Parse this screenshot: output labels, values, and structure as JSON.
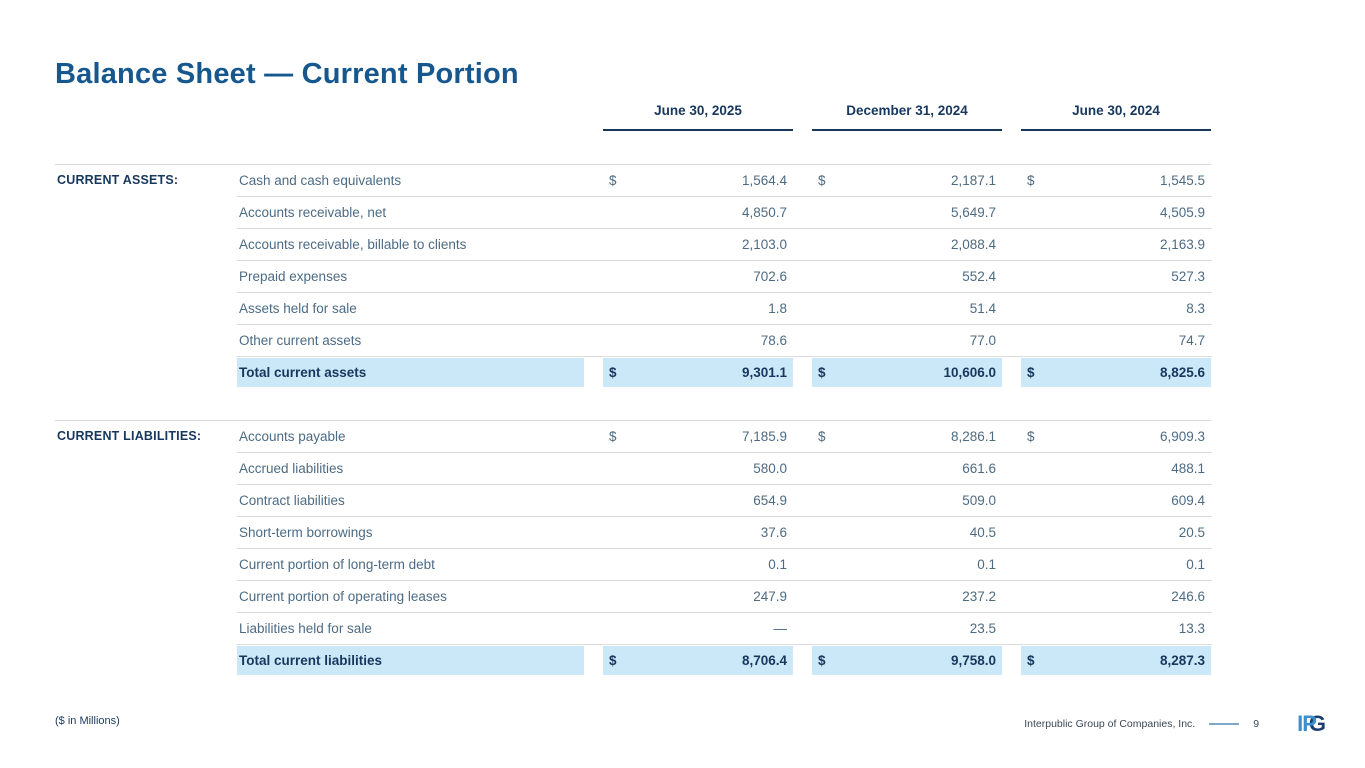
{
  "slide": {
    "title": "Balance Sheet — Current Portion",
    "footnote": "($ in Millions)",
    "footer": {
      "company": "Interpublic Group of Companies, Inc.",
      "page_number": "9",
      "logo_ip": "IP",
      "logo_g": "G"
    }
  },
  "table": {
    "columns": [
      "June 30, 2025",
      "December 31, 2024",
      "June 30, 2024"
    ],
    "sections": [
      {
        "category": "CURRENT ASSETS:",
        "rows": [
          {
            "label": "Cash and cash equivalents",
            "dollar": true,
            "values": [
              "1,564.4",
              "2,187.1",
              "1,545.5"
            ]
          },
          {
            "label": "Accounts receivable, net",
            "dollar": false,
            "values": [
              "4,850.7",
              "5,649.7",
              "4,505.9"
            ]
          },
          {
            "label": "Accounts receivable, billable to clients",
            "dollar": false,
            "values": [
              "2,103.0",
              "2,088.4",
              "2,163.9"
            ]
          },
          {
            "label": "Prepaid expenses",
            "dollar": false,
            "values": [
              "702.6",
              "552.4",
              "527.3"
            ]
          },
          {
            "label": "Assets held for sale",
            "dollar": false,
            "values": [
              "1.8",
              "51.4",
              "8.3"
            ]
          },
          {
            "label": "Other current assets",
            "dollar": false,
            "values": [
              "78.6",
              "77.0",
              "74.7"
            ]
          }
        ],
        "total": {
          "label": "Total current assets",
          "dollar": true,
          "values": [
            "9,301.1",
            "10,606.0",
            "8,825.6"
          ]
        }
      },
      {
        "category": "CURRENT LIABILITIES:",
        "rows": [
          {
            "label": "Accounts payable",
            "dollar": true,
            "values": [
              "7,185.9",
              "8,286.1",
              "6,909.3"
            ]
          },
          {
            "label": "Accrued liabilities",
            "dollar": false,
            "values": [
              "580.0",
              "661.6",
              "488.1"
            ]
          },
          {
            "label": "Contract liabilities",
            "dollar": false,
            "values": [
              "654.9",
              "509.0",
              "609.4"
            ]
          },
          {
            "label": "Short-term borrowings",
            "dollar": false,
            "values": [
              "37.6",
              "40.5",
              "20.5"
            ]
          },
          {
            "label": "Current portion of long-term debt",
            "dollar": false,
            "values": [
              "0.1",
              "0.1",
              "0.1"
            ]
          },
          {
            "label": "Current portion of operating leases",
            "dollar": false,
            "values": [
              "247.9",
              "237.2",
              "246.6"
            ]
          },
          {
            "label": "Liabilities held for sale",
            "dollar": false,
            "values": [
              "—",
              "23.5",
              "13.3"
            ]
          }
        ],
        "total": {
          "label": "Total current liabilities",
          "dollar": true,
          "values": [
            "8,706.4",
            "9,758.0",
            "8,287.3"
          ]
        }
      }
    ]
  },
  "colors": {
    "title_blue": "#16578E",
    "navy": "#17375D",
    "body_text": "#4D6B84",
    "highlight": "#CBE8F8",
    "line_gray": "#DCDCDC",
    "footer_rule_blue": "#7FA6CB",
    "logo_light_blue": "#3F8FCC",
    "logo_navy": "#1C3E6E"
  }
}
